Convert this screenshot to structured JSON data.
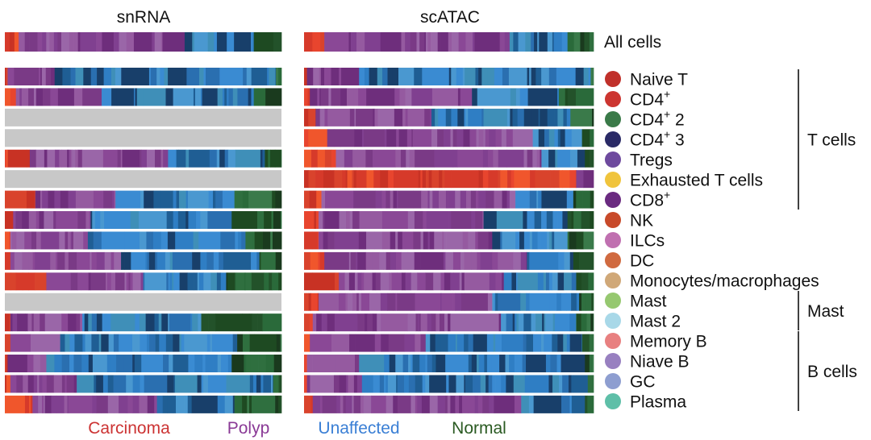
{
  "chart_data": {
    "type": "bar",
    "layout": "stacked-horizontal-100pct",
    "panels": [
      {
        "title": "snRNA"
      },
      {
        "title": "scATAC"
      }
    ],
    "groups": [
      {
        "name": "Carcinoma",
        "color": "#cc3333"
      },
      {
        "name": "Polyp",
        "color": "#8a3a96"
      },
      {
        "name": "Unaffected",
        "color": "#3a7fd5"
      },
      {
        "name": "Normal",
        "color": "#2a5a22"
      }
    ],
    "summary_row": {
      "label": "All cells"
    },
    "celltypes": [
      {
        "name": "Naive T",
        "sup": "",
        "suffix": "",
        "color": "#c0302a"
      },
      {
        "name": "CD4",
        "sup": "+",
        "suffix": "",
        "color": "#cc3530"
      },
      {
        "name": "CD4",
        "sup": "+",
        "suffix": " 2",
        "color": "#3a7a48"
      },
      {
        "name": "CD4",
        "sup": "+",
        "suffix": " 3",
        "color": "#2a2a66"
      },
      {
        "name": "Tregs",
        "sup": "",
        "suffix": "",
        "color": "#6e4a9e"
      },
      {
        "name": "Exhausted T cells",
        "sup": "",
        "suffix": "",
        "color": "#f0c43c"
      },
      {
        "name": "CD8",
        "sup": "+",
        "suffix": "",
        "color": "#6a2a80"
      },
      {
        "name": "NK",
        "sup": "",
        "suffix": "",
        "color": "#c84a2a"
      },
      {
        "name": "ILCs",
        "sup": "",
        "suffix": "",
        "color": "#c070b0"
      },
      {
        "name": "DC",
        "sup": "",
        "suffix": "",
        "color": "#d06a40"
      },
      {
        "name": "Monocytes/macrophages",
        "sup": "",
        "suffix": "",
        "color": "#d0a878"
      },
      {
        "name": "Mast",
        "sup": "",
        "suffix": "",
        "color": "#96c870"
      },
      {
        "name": "Mast 2",
        "sup": "",
        "suffix": "",
        "color": "#a8d8e8"
      },
      {
        "name": "Memory B",
        "sup": "",
        "suffix": "",
        "color": "#e88080"
      },
      {
        "name": "Niave B",
        "sup": "",
        "suffix": "",
        "color": "#9880c0"
      },
      {
        "name": "GC",
        "sup": "",
        "suffix": "",
        "color": "#8e9ed0"
      },
      {
        "name": "Plasma",
        "sup": "",
        "suffix": "",
        "color": "#5ebfa8"
      }
    ],
    "brackets": [
      {
        "label": "T cells",
        "from_index": 0,
        "to_index": 6
      },
      {
        "label": "Mast",
        "from_index": 11,
        "to_index": 12
      },
      {
        "label": "B cells",
        "from_index": 13,
        "to_index": 16
      }
    ],
    "rows": [
      {
        "snRNA": [
          0.05,
          0.6,
          0.25,
          0.1
        ],
        "scATAC": [
          0.07,
          0.64,
          0.2,
          0.09
        ]
      },
      {
        "snRNA": [
          0.01,
          0.17,
          0.8,
          0.02
        ],
        "scATAC": [
          0.01,
          0.18,
          0.8,
          0.01
        ]
      },
      {
        "snRNA": [
          0.04,
          0.31,
          0.55,
          0.1
        ],
        "scATAC": [
          0.02,
          0.56,
          0.3,
          0.12
        ]
      },
      {
        "snRNA": null,
        "scATAC": [
          0.04,
          0.4,
          0.48,
          0.08
        ]
      },
      {
        "snRNA": null,
        "scATAC": [
          0.08,
          0.71,
          0.17,
          0.04
        ]
      },
      {
        "snRNA": [
          0.09,
          0.5,
          0.35,
          0.06
        ],
        "scATAC": [
          0.11,
          0.71,
          0.15,
          0.03
        ]
      },
      {
        "snRNA": null,
        "scATAC": [
          0.94,
          0.06,
          0.0,
          0.0
        ]
      },
      {
        "snRNA": [
          0.11,
          0.29,
          0.43,
          0.17
        ],
        "scATAC": [
          0.06,
          0.67,
          0.2,
          0.07
        ]
      },
      {
        "snRNA": [
          0.03,
          0.28,
          0.51,
          0.18
        ],
        "scATAC": [
          0.05,
          0.57,
          0.29,
          0.09
        ]
      },
      {
        "snRNA": [
          0.02,
          0.28,
          0.57,
          0.13
        ],
        "scATAC": [
          0.05,
          0.6,
          0.26,
          0.09
        ]
      },
      {
        "snRNA": [
          0.02,
          0.4,
          0.5,
          0.08
        ],
        "scATAC": [
          0.07,
          0.7,
          0.16,
          0.07
        ]
      },
      {
        "snRNA": [
          0.15,
          0.35,
          0.3,
          0.2
        ],
        "scATAC": [
          0.12,
          0.57,
          0.25,
          0.06
        ]
      },
      {
        "snRNA": null,
        "scATAC": [
          0.05,
          0.6,
          0.3,
          0.05
        ]
      },
      {
        "snRNA": [
          0.02,
          0.26,
          0.43,
          0.29
        ],
        "scATAC": [
          0.03,
          0.65,
          0.26,
          0.06
        ]
      },
      {
        "snRNA": [
          0.02,
          0.18,
          0.64,
          0.16
        ],
        "scATAC": [
          0.02,
          0.4,
          0.54,
          0.04
        ]
      },
      {
        "snRNA": [
          0.01,
          0.14,
          0.67,
          0.18
        ],
        "scATAC": [
          0.01,
          0.18,
          0.78,
          0.03
        ]
      },
      {
        "snRNA": [
          0.02,
          0.24,
          0.71,
          0.03
        ],
        "scATAC": [
          0.01,
          0.19,
          0.78,
          0.02
        ]
      },
      {
        "snRNA": [
          0.1,
          0.45,
          0.28,
          0.17
        ],
        "scATAC": [
          0.03,
          0.72,
          0.22,
          0.03
        ]
      }
    ],
    "missing_color": "#c8c8c8",
    "shade_palette": {
      "Carcinoma": [
        "#d63a2a",
        "#e8452e",
        "#c83224",
        "#f0562c",
        "#d9432c"
      ],
      "Polyp": [
        "#7a3a86",
        "#8a4896",
        "#6e2e7c",
        "#955aa0",
        "#804090",
        "#9a66a8"
      ],
      "Unaffected": [
        "#2f7ec4",
        "#3a8bd2",
        "#1f5e94",
        "#183f6a",
        "#4a98d0",
        "#2a6fb0",
        "#3f8fb8"
      ],
      "Normal": [
        "#1e4a22",
        "#2a6a3a",
        "#23522a",
        "#3a7a4a",
        "#1a3a1e",
        "#2f6f3f"
      ]
    }
  }
}
